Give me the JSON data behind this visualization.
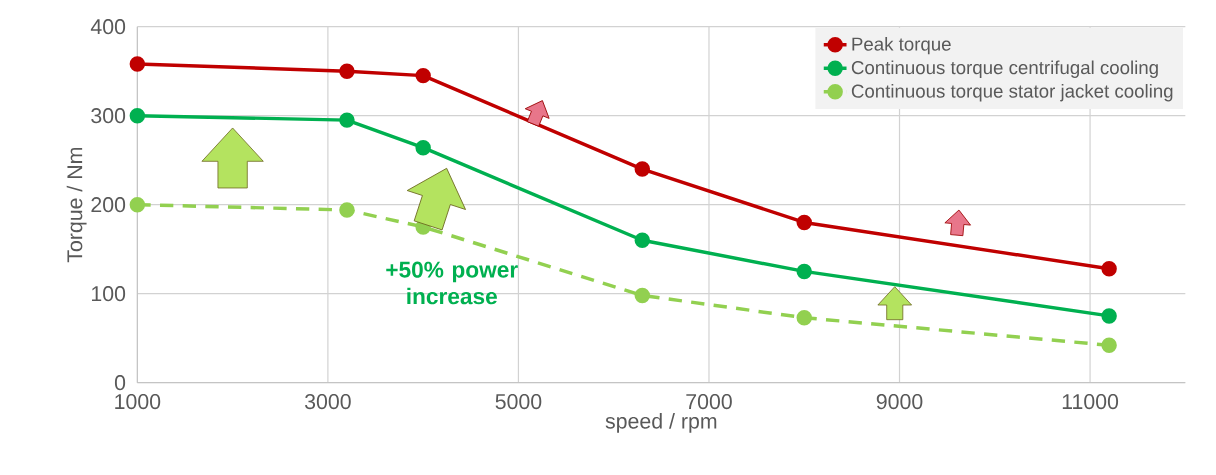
{
  "chart_data": {
    "type": "line",
    "xlabel": "speed / rpm",
    "ylabel": "Torque / Nm",
    "x": [
      1000,
      3200,
      4000,
      6300,
      8000,
      11200
    ],
    "series": [
      {
        "name": "Peak torque",
        "color": "#c00000",
        "line_style": "solid",
        "values": [
          358,
          350,
          345,
          240,
          180,
          128
        ]
      },
      {
        "name": "Continuous torque centrifugal cooling",
        "color": "#00b050",
        "line_style": "solid",
        "values": [
          300,
          295,
          264,
          160,
          125,
          75
        ]
      },
      {
        "name": "Continuous torque stator jacket cooling",
        "color": "#92d050",
        "line_style": "dashed",
        "values": [
          200,
          194,
          175,
          98,
          73,
          42
        ]
      }
    ],
    "xlim": [
      1000,
      12000
    ],
    "xticks": [
      1000,
      3000,
      5000,
      7000,
      9000,
      11000
    ],
    "ylim": [
      0,
      400
    ],
    "yticks": [
      0,
      100,
      200,
      300,
      400
    ],
    "grid": true,
    "legend": "top right",
    "marker": "circle",
    "annotations": [
      "+50% power increase"
    ]
  }
}
